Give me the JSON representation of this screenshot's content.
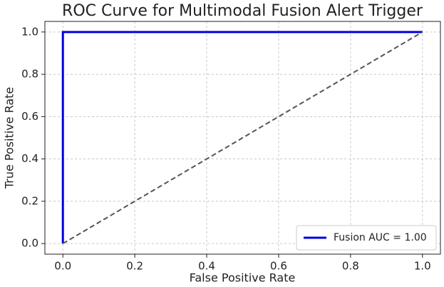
{
  "chart_data": {
    "type": "line",
    "title": "ROC Curve for Multimodal Fusion Alert Trigger",
    "xlabel": "False Positive Rate",
    "ylabel": "True Positive Rate",
    "series": [
      {
        "name": "Fusion AUC = 1.00",
        "color": "#0000dd",
        "x": [
          0,
          0,
          1
        ],
        "values": [
          0,
          1,
          1
        ]
      },
      {
        "color": "#555555",
        "dash": true,
        "x": [
          0,
          1
        ],
        "values": [
          0,
          1
        ]
      }
    ],
    "xlim": [
      -0.05,
      1.05
    ],
    "ylim": [
      -0.05,
      1.05
    ],
    "xticks": [
      {
        "value": 0,
        "label": "0.0"
      },
      0.2,
      0.4,
      0.6,
      0.8,
      {
        "value": 1,
        "label": "1.0"
      }
    ],
    "yticks": [
      {
        "value": 0,
        "label": "0.0"
      },
      0.2,
      0.4,
      0.6,
      0.8,
      {
        "value": 1,
        "label": "1.0"
      }
    ],
    "grid": true,
    "legend": "lower right"
  }
}
